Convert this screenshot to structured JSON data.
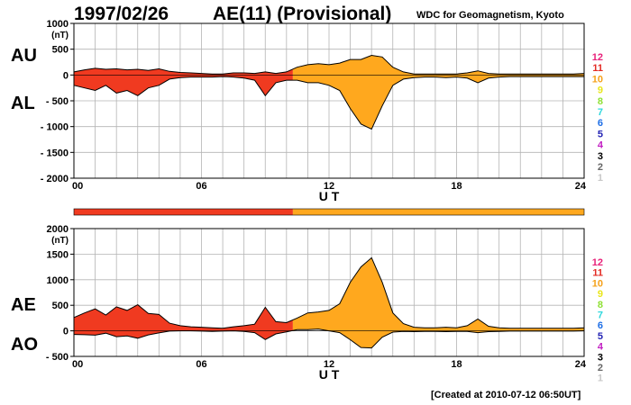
{
  "header": {
    "date": "1997/02/26",
    "title": "AE(11) (Provisional)",
    "institution": "WDC for Geomagnetism, Kyoto"
  },
  "footer": {
    "created": "[Created at 2010-07-12 06:50UT]"
  },
  "colors": {
    "early": "#f03a20",
    "late": "#ffa81e",
    "axis": "#000000",
    "grid": "#b4b4b4"
  },
  "chart_data": [
    {
      "type": "area",
      "panel": "AU-AL",
      "left_labels": [
        "AU",
        "AL"
      ],
      "yunit": "(nT)",
      "ylim": [
        -2000,
        1000
      ],
      "yticks": [
        "1000",
        "500",
        "0",
        "- 500",
        "- 1000",
        "- 1500",
        "- 2000"
      ],
      "xlabel": "U T",
      "xlim": [
        0,
        24
      ],
      "xticks": [
        "00",
        "06",
        "12",
        "18",
        "24"
      ],
      "grid": true,
      "color_change_hour": 10.3,
      "series": [
        {
          "role": "upper",
          "x": [
            0,
            0.5,
            1,
            1.5,
            2,
            2.5,
            3,
            3.5,
            4,
            4.5,
            5,
            5.5,
            6,
            6.5,
            7,
            7.5,
            8,
            8.5,
            9,
            9.5,
            10,
            10.5,
            11,
            11.5,
            12,
            12.5,
            13,
            13.5,
            14,
            14.5,
            15,
            15.5,
            16,
            16.5,
            17,
            17.5,
            18,
            18.5,
            19,
            19.5,
            20,
            20.5,
            21,
            21.5,
            22,
            22.5,
            23,
            23.5,
            24
          ],
          "values": [
            60,
            100,
            130,
            110,
            120,
            100,
            110,
            90,
            120,
            70,
            50,
            40,
            30,
            20,
            20,
            40,
            40,
            30,
            60,
            30,
            60,
            150,
            200,
            220,
            200,
            230,
            300,
            300,
            380,
            350,
            150,
            60,
            20,
            20,
            20,
            20,
            20,
            40,
            80,
            30,
            20,
            20,
            20,
            20,
            20,
            20,
            20,
            20,
            30
          ]
        },
        {
          "role": "lower",
          "x": [
            0,
            0.5,
            1,
            1.5,
            2,
            2.5,
            3,
            3.5,
            4,
            4.5,
            5,
            5.5,
            6,
            6.5,
            7,
            7.5,
            8,
            8.5,
            9,
            9.5,
            10,
            10.5,
            11,
            11.5,
            12,
            12.5,
            13,
            13.5,
            14,
            14.5,
            15,
            15.5,
            16,
            16.5,
            17,
            17.5,
            18,
            18.5,
            19,
            19.5,
            20,
            20.5,
            21,
            21.5,
            22,
            22.5,
            23,
            23.5,
            24
          ],
          "values": [
            -200,
            -250,
            -300,
            -200,
            -350,
            -300,
            -400,
            -250,
            -200,
            -80,
            -50,
            -40,
            -40,
            -40,
            -30,
            -40,
            -60,
            -100,
            -400,
            -150,
            -100,
            -100,
            -150,
            -150,
            -200,
            -300,
            -650,
            -950,
            -1050,
            -600,
            -200,
            -80,
            -50,
            -40,
            -40,
            -50,
            -40,
            -60,
            -150,
            -60,
            -40,
            -30,
            -30,
            -30,
            -30,
            -30,
            -30,
            -30,
            -30
          ]
        }
      ]
    },
    {
      "type": "area",
      "panel": "AE-AO",
      "left_labels": [
        "AE",
        "AO"
      ],
      "yunit": "(nT)",
      "ylim": [
        -500,
        2000
      ],
      "yticks": [
        "2000",
        "1500",
        "1000",
        "500",
        "0",
        "- 500"
      ],
      "xlabel": "U T",
      "xlim": [
        0,
        24
      ],
      "xticks": [
        "00",
        "06",
        "12",
        "18",
        "24"
      ],
      "grid": true,
      "color_change_hour": 10.3,
      "series": [
        {
          "role": "upper",
          "x": [
            0,
            0.5,
            1,
            1.5,
            2,
            2.5,
            3,
            3.5,
            4,
            4.5,
            5,
            5.5,
            6,
            6.5,
            7,
            7.5,
            8,
            8.5,
            9,
            9.5,
            10,
            10.5,
            11,
            11.5,
            12,
            12.5,
            13,
            13.5,
            14,
            14.5,
            15,
            15.5,
            16,
            16.5,
            17,
            17.5,
            18,
            18.5,
            19,
            19.5,
            20,
            20.5,
            21,
            21.5,
            22,
            22.5,
            23,
            23.5,
            24
          ],
          "values": [
            260,
            350,
            430,
            310,
            470,
            400,
            510,
            340,
            320,
            150,
            100,
            80,
            70,
            60,
            50,
            80,
            100,
            130,
            460,
            180,
            160,
            250,
            350,
            370,
            400,
            530,
            950,
            1250,
            1430,
            950,
            350,
            140,
            70,
            60,
            60,
            70,
            60,
            100,
            230,
            90,
            60,
            50,
            50,
            50,
            50,
            50,
            50,
            50,
            60
          ]
        },
        {
          "role": "lower",
          "x": [
            0,
            0.5,
            1,
            1.5,
            2,
            2.5,
            3,
            3.5,
            4,
            4.5,
            5,
            5.5,
            6,
            6.5,
            7,
            7.5,
            8,
            8.5,
            9,
            9.5,
            10,
            10.5,
            11,
            11.5,
            12,
            12.5,
            13,
            13.5,
            14,
            14.5,
            15,
            15.5,
            16,
            16.5,
            17,
            17.5,
            18,
            18.5,
            19,
            19.5,
            20,
            20.5,
            21,
            21.5,
            22,
            22.5,
            23,
            23.5,
            24
          ],
          "values": [
            -70,
            -75,
            -85,
            -45,
            -115,
            -100,
            -145,
            -80,
            -40,
            -5,
            0,
            0,
            -5,
            -10,
            -5,
            0,
            -10,
            -35,
            -170,
            -60,
            -20,
            25,
            25,
            35,
            0,
            -35,
            -175,
            -325,
            -335,
            -125,
            -25,
            -10,
            -15,
            -10,
            -10,
            -15,
            -10,
            -10,
            -35,
            -15,
            -10,
            -5,
            -5,
            -5,
            -5,
            -5,
            -5,
            -5,
            0
          ]
        }
      ]
    }
  ],
  "legend": {
    "items": [
      {
        "label": "12",
        "color": "#e8227a"
      },
      {
        "label": "11",
        "color": "#e32a22"
      },
      {
        "label": "10",
        "color": "#f5a11a"
      },
      {
        "label": "9",
        "color": "#e9e61b"
      },
      {
        "label": "8",
        "color": "#8fe034"
      },
      {
        "label": "7",
        "color": "#2fd8dd"
      },
      {
        "label": "6",
        "color": "#1e6ee6"
      },
      {
        "label": "5",
        "color": "#2424b4"
      },
      {
        "label": "4",
        "color": "#c21ec2"
      },
      {
        "label": "3",
        "color": "#000000"
      },
      {
        "label": "2",
        "color": "#666666"
      },
      {
        "label": "1",
        "color": "#c8c8c8"
      }
    ]
  }
}
